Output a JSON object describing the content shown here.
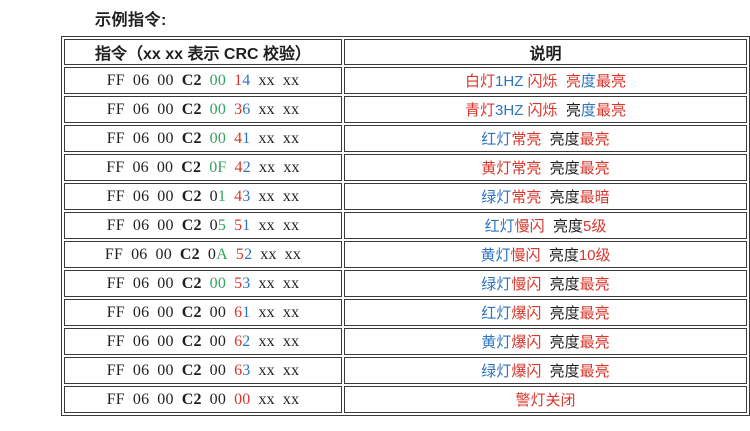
{
  "page": {
    "title": "示例指令:"
  },
  "colors": {
    "red": "#d9352a",
    "blue": "#2e74c0",
    "green": "#33a05f",
    "text": "#1f1f1f",
    "border": "#3a3a3a"
  },
  "table": {
    "headers": {
      "command": "指令（xx xx 表示 CRC 校验）",
      "description": "说明"
    },
    "rows": [
      {
        "command": [
          [
            [
              "FF",
              "k"
            ]
          ],
          [
            [
              "06",
              "k"
            ]
          ],
          [
            [
              "00",
              "k"
            ]
          ],
          [
            [
              "C2",
              "kb"
            ]
          ],
          [
            [
              "00",
              "g"
            ]
          ],
          [
            [
              "1",
              "r"
            ],
            [
              "4",
              "b"
            ]
          ],
          [
            [
              "xx",
              "k"
            ]
          ],
          [
            [
              "xx",
              "k"
            ]
          ]
        ],
        "desc": [
          [
            "白灯",
            "r"
          ],
          [
            "1HZ",
            "b"
          ],
          [
            " 闪烁  ",
            "r"
          ],
          [
            "亮",
            "r"
          ],
          [
            "度",
            "b"
          ],
          [
            "最亮",
            "r"
          ]
        ]
      },
      {
        "command": [
          [
            [
              "FF",
              "k"
            ]
          ],
          [
            [
              "06",
              "k"
            ]
          ],
          [
            [
              "00",
              "k"
            ]
          ],
          [
            [
              "C2",
              "kb"
            ]
          ],
          [
            [
              "00",
              "g"
            ]
          ],
          [
            [
              "3",
              "r"
            ],
            [
              "6",
              "b"
            ]
          ],
          [
            [
              "xx",
              "k"
            ]
          ],
          [
            [
              "xx",
              "k"
            ]
          ]
        ],
        "desc": [
          [
            "青灯",
            "r"
          ],
          [
            "3HZ",
            "b"
          ],
          [
            " 闪烁  ",
            "r"
          ],
          [
            "亮",
            "k"
          ],
          [
            "度",
            "b"
          ],
          [
            "最亮",
            "r"
          ]
        ]
      },
      {
        "command": [
          [
            [
              "FF",
              "k"
            ]
          ],
          [
            [
              "06",
              "k"
            ]
          ],
          [
            [
              "00",
              "k"
            ]
          ],
          [
            [
              "C2",
              "kb"
            ]
          ],
          [
            [
              "00",
              "g"
            ]
          ],
          [
            [
              "4",
              "r"
            ],
            [
              "1",
              "b"
            ]
          ],
          [
            [
              "xx",
              "k"
            ]
          ],
          [
            [
              "xx",
              "k"
            ]
          ]
        ],
        "desc": [
          [
            "红灯",
            "b"
          ],
          [
            "常亮",
            "r"
          ],
          [
            "  亮度",
            "k"
          ],
          [
            "最亮",
            "r"
          ]
        ]
      },
      {
        "command": [
          [
            [
              "FF",
              "k"
            ]
          ],
          [
            [
              "06",
              "k"
            ]
          ],
          [
            [
              "00",
              "k"
            ]
          ],
          [
            [
              "C2",
              "kb"
            ]
          ],
          [
            [
              "0F",
              "g"
            ]
          ],
          [
            [
              "4",
              "r"
            ],
            [
              "2",
              "b"
            ]
          ],
          [
            [
              "xx",
              "k"
            ]
          ],
          [
            [
              "xx",
              "k"
            ]
          ]
        ],
        "desc": [
          [
            "黄灯",
            "r"
          ],
          [
            "常亮",
            "r"
          ],
          [
            "  亮度",
            "k"
          ],
          [
            "最亮",
            "r"
          ]
        ]
      },
      {
        "command": [
          [
            [
              "FF",
              "k"
            ]
          ],
          [
            [
              "06",
              "k"
            ]
          ],
          [
            [
              "00",
              "k"
            ]
          ],
          [
            [
              "C2",
              "kb"
            ]
          ],
          [
            [
              "0",
              "k"
            ],
            [
              "1",
              "g"
            ]
          ],
          [
            [
              "4",
              "r"
            ],
            [
              "3",
              "b"
            ]
          ],
          [
            [
              "xx",
              "k"
            ]
          ],
          [
            [
              "xx",
              "k"
            ]
          ]
        ],
        "desc": [
          [
            "绿灯",
            "b"
          ],
          [
            "常亮",
            "r"
          ],
          [
            "  亮度",
            "k"
          ],
          [
            "最暗",
            "r"
          ]
        ]
      },
      {
        "command": [
          [
            [
              "FF",
              "k"
            ]
          ],
          [
            [
              "06",
              "k"
            ]
          ],
          [
            [
              "00",
              "k"
            ]
          ],
          [
            [
              "C2",
              "kb"
            ]
          ],
          [
            [
              "0",
              "k"
            ],
            [
              "5",
              "g"
            ]
          ],
          [
            [
              "5",
              "r"
            ],
            [
              "1",
              "b"
            ]
          ],
          [
            [
              "xx",
              "k"
            ]
          ],
          [
            [
              "xx",
              "k"
            ]
          ]
        ],
        "desc": [
          [
            "红灯",
            "b"
          ],
          [
            "慢闪",
            "r"
          ],
          [
            "  亮度",
            "k"
          ],
          [
            "5级",
            "r"
          ]
        ]
      },
      {
        "command": [
          [
            [
              "FF",
              "k"
            ]
          ],
          [
            [
              "06",
              "k"
            ]
          ],
          [
            [
              "00",
              "k"
            ]
          ],
          [
            [
              "C2",
              "kb"
            ]
          ],
          [
            [
              "0",
              "k"
            ],
            [
              "A",
              "g"
            ]
          ],
          [
            [
              "5",
              "r"
            ],
            [
              "2",
              "b"
            ]
          ],
          [
            [
              "xx",
              "k"
            ]
          ],
          [
            [
              "xx",
              "k"
            ]
          ]
        ],
        "desc": [
          [
            "黄灯",
            "b"
          ],
          [
            "慢闪",
            "r"
          ],
          [
            "  亮度",
            "k"
          ],
          [
            "10级",
            "r"
          ]
        ]
      },
      {
        "command": [
          [
            [
              "FF",
              "k"
            ]
          ],
          [
            [
              "06",
              "k"
            ]
          ],
          [
            [
              "00",
              "k"
            ]
          ],
          [
            [
              "C2",
              "kb"
            ]
          ],
          [
            [
              "00",
              "g"
            ]
          ],
          [
            [
              "5",
              "r"
            ],
            [
              "3",
              "b"
            ]
          ],
          [
            [
              "xx",
              "k"
            ]
          ],
          [
            [
              "xx",
              "k"
            ]
          ]
        ],
        "desc": [
          [
            "绿灯",
            "b"
          ],
          [
            "慢闪",
            "r"
          ],
          [
            "  亮度",
            "k"
          ],
          [
            "最亮",
            "r"
          ]
        ]
      },
      {
        "command": [
          [
            [
              "FF",
              "k"
            ]
          ],
          [
            [
              "06",
              "k"
            ]
          ],
          [
            [
              "00",
              "k"
            ]
          ],
          [
            [
              "C2",
              "kb"
            ]
          ],
          [
            [
              "00",
              "k"
            ]
          ],
          [
            [
              "6",
              "r"
            ],
            [
              "1",
              "b"
            ]
          ],
          [
            [
              "xx",
              "k"
            ]
          ],
          [
            [
              "xx",
              "k"
            ]
          ]
        ],
        "desc": [
          [
            "红灯",
            "b"
          ],
          [
            "爆闪",
            "r"
          ],
          [
            "  亮度",
            "k"
          ],
          [
            "最亮",
            "r"
          ]
        ]
      },
      {
        "command": [
          [
            [
              "FF",
              "k"
            ]
          ],
          [
            [
              "06",
              "k"
            ]
          ],
          [
            [
              "00",
              "k"
            ]
          ],
          [
            [
              "C2",
              "kb"
            ]
          ],
          [
            [
              "00",
              "k"
            ]
          ],
          [
            [
              "6",
              "r"
            ],
            [
              "2",
              "b"
            ]
          ],
          [
            [
              "xx",
              "k"
            ]
          ],
          [
            [
              "xx",
              "k"
            ]
          ]
        ],
        "desc": [
          [
            "黄灯",
            "b"
          ],
          [
            "爆闪",
            "r"
          ],
          [
            "  亮度",
            "k"
          ],
          [
            "最亮",
            "r"
          ]
        ]
      },
      {
        "command": [
          [
            [
              "FF",
              "k"
            ]
          ],
          [
            [
              "06",
              "k"
            ]
          ],
          [
            [
              "00",
              "k"
            ]
          ],
          [
            [
              "C2",
              "kb"
            ]
          ],
          [
            [
              "00",
              "k"
            ]
          ],
          [
            [
              "6",
              "r"
            ],
            [
              "3",
              "b"
            ]
          ],
          [
            [
              "xx",
              "k"
            ]
          ],
          [
            [
              "xx",
              "k"
            ]
          ]
        ],
        "desc": [
          [
            "绿灯",
            "b"
          ],
          [
            "爆闪",
            "r"
          ],
          [
            "  亮度",
            "k"
          ],
          [
            "最亮",
            "r"
          ]
        ]
      },
      {
        "command": [
          [
            [
              "FF",
              "k"
            ]
          ],
          [
            [
              "06",
              "k"
            ]
          ],
          [
            [
              "00",
              "k"
            ]
          ],
          [
            [
              "C2",
              "kb"
            ]
          ],
          [
            [
              "00",
              "k"
            ]
          ],
          [
            [
              "00",
              "r"
            ]
          ],
          [
            [
              "xx",
              "k"
            ]
          ],
          [
            [
              "xx",
              "k"
            ]
          ]
        ],
        "desc": [
          [
            "警灯关闭",
            "r"
          ]
        ]
      }
    ]
  }
}
